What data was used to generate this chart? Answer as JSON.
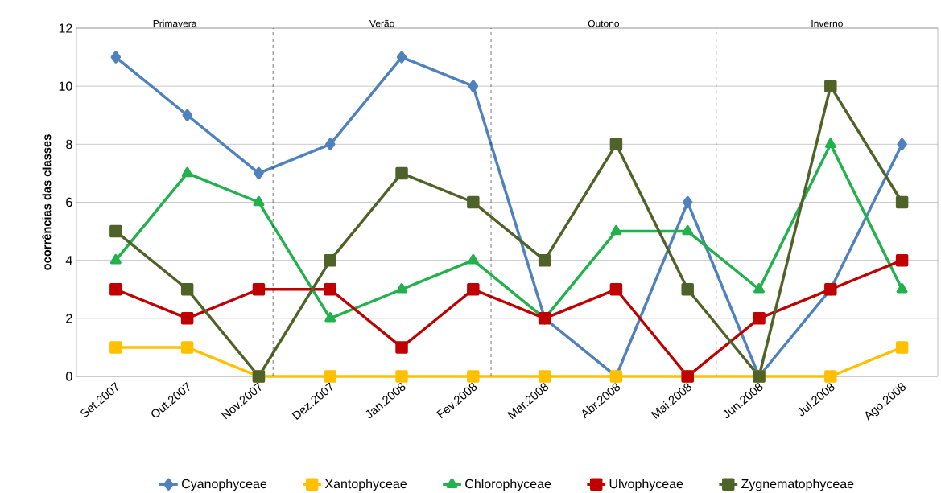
{
  "chart_data": {
    "type": "line",
    "ylabel": "ocorrências das classes",
    "categories": [
      "Set.2007",
      "Out.2007",
      "Nov.2007",
      "Dez.2007",
      "Jan.2008",
      "Fev.2008",
      "Mar.2008",
      "Abr.2008",
      "Mai.2008",
      "Jun.2008",
      "Jul.2008",
      "Ago.2008"
    ],
    "series": [
      {
        "name": "Cyanophyceae",
        "color": "#4f81bd",
        "marker": "diamond",
        "values": [
          11,
          9,
          7,
          8,
          11,
          10,
          2,
          0,
          6,
          0,
          3,
          8
        ]
      },
      {
        "name": "Xantophyceae",
        "color": "#ffc000",
        "marker": "square",
        "values": [
          1,
          1,
          0,
          0,
          0,
          0,
          0,
          0,
          0,
          0,
          0,
          1
        ]
      },
      {
        "name": "Chlorophyceae",
        "color": "#22b14c",
        "marker": "triangle",
        "values": [
          4,
          7,
          6,
          2,
          3,
          4,
          2,
          5,
          5,
          3,
          8,
          3
        ]
      },
      {
        "name": "Ulvophyceae",
        "color": "#c00000",
        "marker": "square",
        "values": [
          3,
          2,
          3,
          3,
          1,
          3,
          2,
          3,
          0,
          2,
          3,
          4
        ]
      },
      {
        "name": "Zygnematophyceae",
        "color": "#4f6228",
        "marker": "square",
        "values": [
          5,
          3,
          0,
          4,
          7,
          6,
          4,
          8,
          3,
          0,
          10,
          6
        ]
      }
    ],
    "ylim": [
      0,
      12
    ],
    "yticks": [
      0,
      2,
      4,
      6,
      8,
      10,
      12
    ],
    "grid": "y",
    "legend": "bottom",
    "line_style": "solid",
    "annotations": [
      "Primavera",
      "Verão",
      "Outono",
      "Inverno"
    ]
  }
}
